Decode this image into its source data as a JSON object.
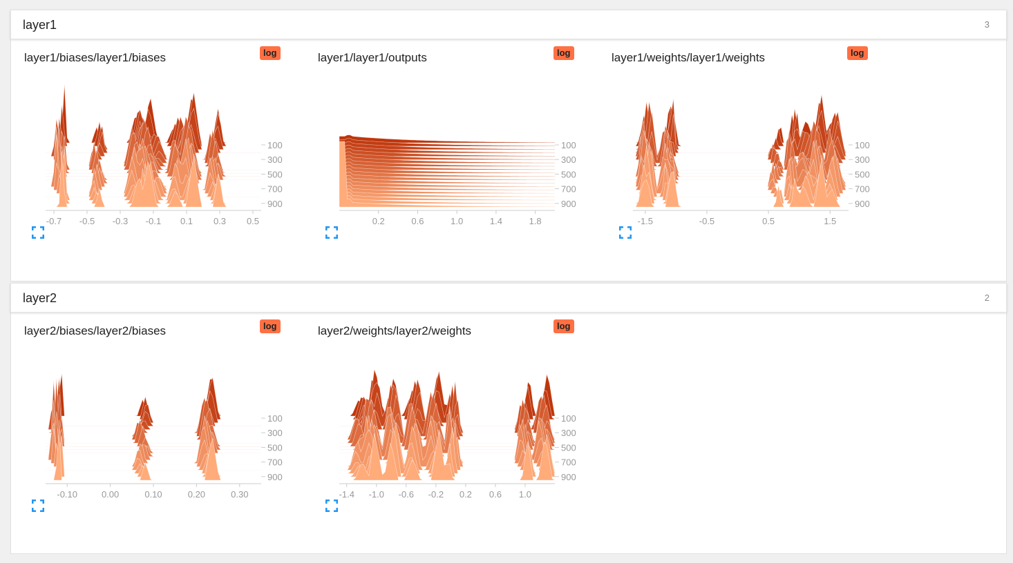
{
  "colors": {
    "accent": "#ff7043",
    "back_fill": "#bf360c",
    "front_fill": "#ffab7a",
    "expand_icon": "#2196f3",
    "axis_text": "#999999"
  },
  "groups": [
    {
      "title": "layer1",
      "count": "3",
      "cards": [
        {
          "title": "layer1/biases/layer1/biases",
          "log_label": "log",
          "icon": "fullscreen-icon",
          "chart_data": {
            "type": "area",
            "x_ticks": [
              "-0.7",
              "-0.5",
              "-0.3",
              "-0.1",
              "0.1",
              "0.3",
              "0.5"
            ],
            "y_ticks": [
              "100",
              "300",
              "500",
              "700",
              "900"
            ],
            "xlim": [
              -0.75,
              0.55
            ],
            "steps": [
              0,
              1000
            ],
            "mode": "multi"
          }
        },
        {
          "title": "layer1/layer1/outputs",
          "log_label": "log",
          "icon": "fullscreen-icon",
          "chart_data": {
            "type": "area",
            "x_ticks": [
              "0.2",
              "0.6",
              "1.0",
              "1.4",
              "1.8"
            ],
            "y_ticks": [
              "100",
              "300",
              "500",
              "700",
              "900"
            ],
            "xlim": [
              -0.2,
              2.0
            ],
            "steps": [
              0,
              1000
            ],
            "mode": "decay"
          }
        },
        {
          "title": "layer1/weights/layer1/weights",
          "log_label": "log",
          "icon": "fullscreen-icon",
          "chart_data": {
            "type": "area",
            "x_ticks": [
              "-1.5",
              "-0.5",
              "0.5",
              "1.5"
            ],
            "y_ticks": [
              "100",
              "300",
              "500",
              "700",
              "900"
            ],
            "xlim": [
              -1.7,
              1.8
            ],
            "steps": [
              0,
              1000
            ],
            "mode": "multi"
          }
        }
      ]
    },
    {
      "title": "layer2",
      "count": "2",
      "cards": [
        {
          "title": "layer2/biases/layer2/biases",
          "log_label": "log",
          "icon": "fullscreen-icon",
          "chart_data": {
            "type": "area",
            "x_ticks": [
              "-0.10",
              "0.00",
              "0.10",
              "0.20",
              "0.30"
            ],
            "y_ticks": [
              "100",
              "300",
              "500",
              "700",
              "900"
            ],
            "xlim": [
              -0.15,
              0.35
            ],
            "steps": [
              0,
              1000
            ],
            "mode": "sparse"
          }
        },
        {
          "title": "layer2/weights/layer2/weights",
          "log_label": "log",
          "icon": "fullscreen-icon",
          "chart_data": {
            "type": "area",
            "x_ticks": [
              "-1.4",
              "-1.0",
              "-0.6",
              "-0.2",
              "0.2",
              "0.6",
              "1.0"
            ],
            "y_ticks": [
              "100",
              "300",
              "500",
              "700",
              "900"
            ],
            "xlim": [
              -1.5,
              1.4
            ],
            "steps": [
              0,
              1000
            ],
            "mode": "multi"
          }
        }
      ]
    }
  ]
}
